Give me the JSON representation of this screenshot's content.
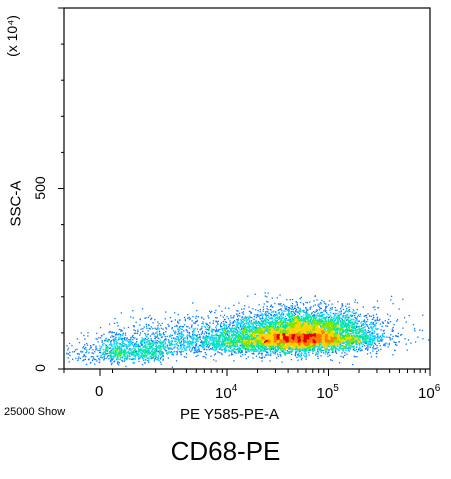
{
  "chart_data": {
    "type": "scatter",
    "subtype": "flow-cytometry-density-dot-plot",
    "caption": "CD68-PE",
    "xlabel": "PE Y585-PE-A",
    "ylabel": "SSC-A",
    "y_unit_label": "(x 10⁴)",
    "event_count_label": "25000 Show",
    "x_scale": "biexponential (log above 10^3)",
    "y_scale": "linear",
    "x_range": [
      -1000,
      1000000
    ],
    "y_range": [
      0,
      1000
    ],
    "x_ticks": [
      {
        "value": 0,
        "base": "0",
        "exp": ""
      },
      {
        "value": 10000,
        "base": "10",
        "exp": "4"
      },
      {
        "value": 100000,
        "base": "10",
        "exp": "5"
      },
      {
        "value": 1000000,
        "base": "10",
        "exp": "6"
      }
    ],
    "y_ticks": [
      {
        "value": 0,
        "label": "0"
      },
      {
        "value": 500,
        "label": "500"
      }
    ],
    "colormap": [
      "#1a1aff",
      "#0078ff",
      "#00d2ff",
      "#00e6a0",
      "#78e600",
      "#ffd200",
      "#ff7800",
      "#e60000"
    ],
    "populations": [
      {
        "x": 1000,
        "y": 50,
        "sx_log": 0.22,
        "sy": 25,
        "events": 900
      },
      {
        "x": 3000,
        "y": 80,
        "sx_log": 0.35,
        "sy": 35,
        "events": 500
      },
      {
        "x": 60000,
        "y": 95,
        "sx_log": 0.35,
        "sy": 35,
        "events": 6000
      },
      {
        "x": 20000,
        "y": 80,
        "sx_log": 0.45,
        "sy": 30,
        "events": 2000
      }
    ]
  }
}
